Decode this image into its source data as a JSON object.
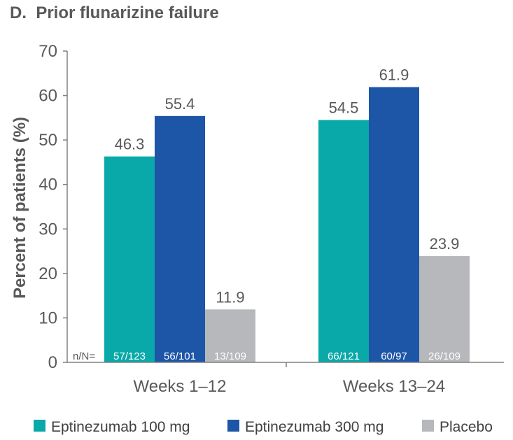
{
  "chart_data": {
    "type": "bar",
    "title": "D.  Prior flunarizine failure",
    "ylabel": "Percent of patients (%)",
    "xlabel": "",
    "ylim": [
      0,
      70
    ],
    "yticks": [
      "0",
      "10",
      "20",
      "30",
      "40",
      "50",
      "60",
      "70"
    ],
    "categories": [
      "Weeks  1–12",
      "Weeks  13–24"
    ],
    "nn_label": "n/N=",
    "series": [
      {
        "name": "Eptinezumab 100 mg",
        "color": "#0AA9A9",
        "values": [
          46.3,
          54.5
        ],
        "value_labels": [
          "46.3",
          "54.5"
        ],
        "nn": [
          "57/123",
          "66/121"
        ]
      },
      {
        "name": "Eptinezumab 300 mg",
        "color": "#1D56A7",
        "values": [
          55.4,
          61.9
        ],
        "value_labels": [
          "55.4",
          "61.9"
        ],
        "nn": [
          "56/101",
          "60/97"
        ]
      },
      {
        "name": "Placebo",
        "color": "#B6B8BB",
        "values": [
          11.9,
          23.9
        ],
        "value_labels": [
          "11.9",
          "23.9"
        ],
        "nn": [
          "13/109",
          "26/109"
        ]
      }
    ],
    "grid": false,
    "legend_position": "bottom"
  }
}
